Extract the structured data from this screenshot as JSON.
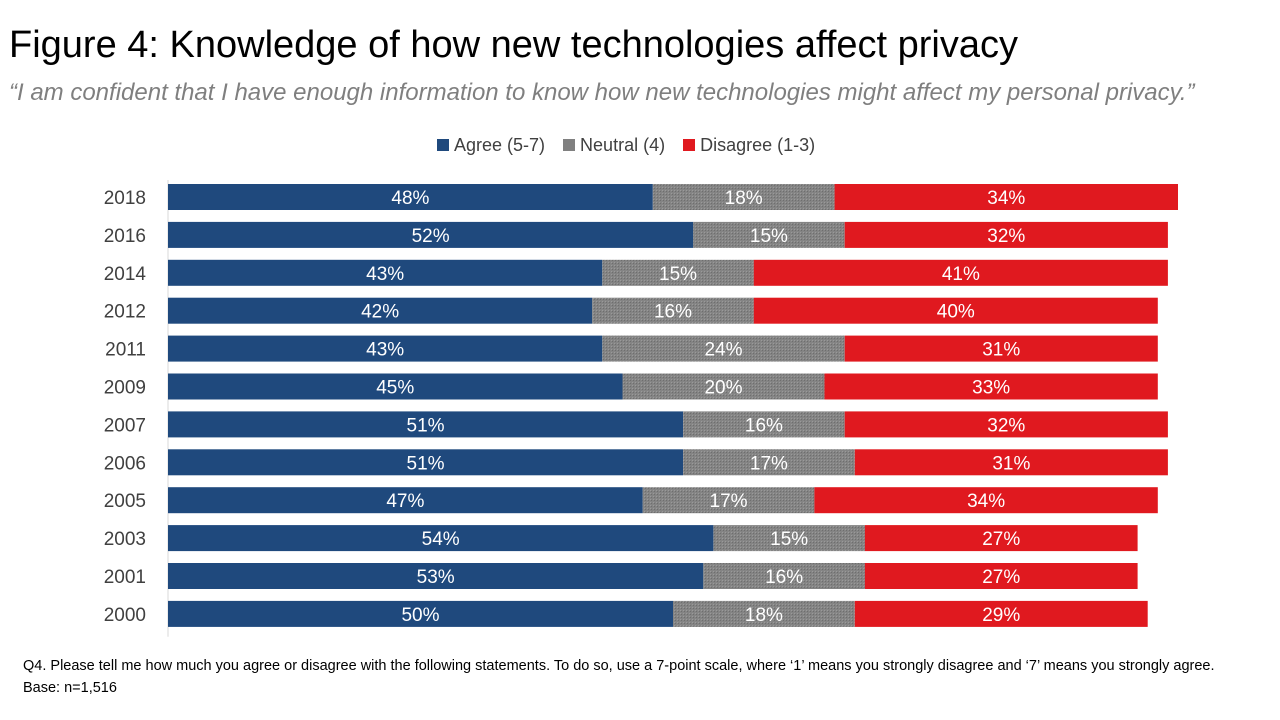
{
  "header": {
    "title": "Figure 4: Knowledge of how new technologies affect privacy",
    "subtitle": "“I am confident that I have enough information to know how new technologies might affect my personal privacy.”"
  },
  "legend": [
    {
      "label": "Agree (5-7)",
      "color": "#1f497d"
    },
    {
      "label": "Neutral (4)",
      "color": "#808080"
    },
    {
      "label": "Disagree (1-3)",
      "color": "#e0191f"
    }
  ],
  "chart_data": {
    "type": "bar",
    "orientation": "horizontal",
    "stacked": true,
    "title": "Figure 4: Knowledge of how new technologies affect privacy",
    "categories": [
      "2018",
      "2016",
      "2014",
      "2012",
      "2011",
      "2009",
      "2007",
      "2006",
      "2005",
      "2003",
      "2001",
      "2000"
    ],
    "series": [
      {
        "name": "Agree (5-7)",
        "color": "#1f497d",
        "values": [
          48,
          52,
          43,
          42,
          43,
          45,
          51,
          51,
          47,
          54,
          53,
          50
        ]
      },
      {
        "name": "Neutral (4)",
        "color": "#808080",
        "values": [
          18,
          15,
          15,
          16,
          24,
          20,
          16,
          17,
          17,
          15,
          16,
          18
        ]
      },
      {
        "name": "Disagree (1-3)",
        "color": "#e0191f",
        "values": [
          34,
          32,
          41,
          40,
          31,
          33,
          32,
          31,
          34,
          27,
          27,
          29
        ]
      }
    ],
    "value_suffix": "%",
    "xlim": [
      0,
      100
    ],
    "legend_position": "top-center",
    "grid": false
  },
  "footnote": {
    "question": "Q4. Please tell me how much you agree or disagree with the following statements. To do so, use a 7-point scale, where ‘1’ means you strongly disagree and ‘7’ means you strongly agree.",
    "base": "Base: n=1,516"
  }
}
